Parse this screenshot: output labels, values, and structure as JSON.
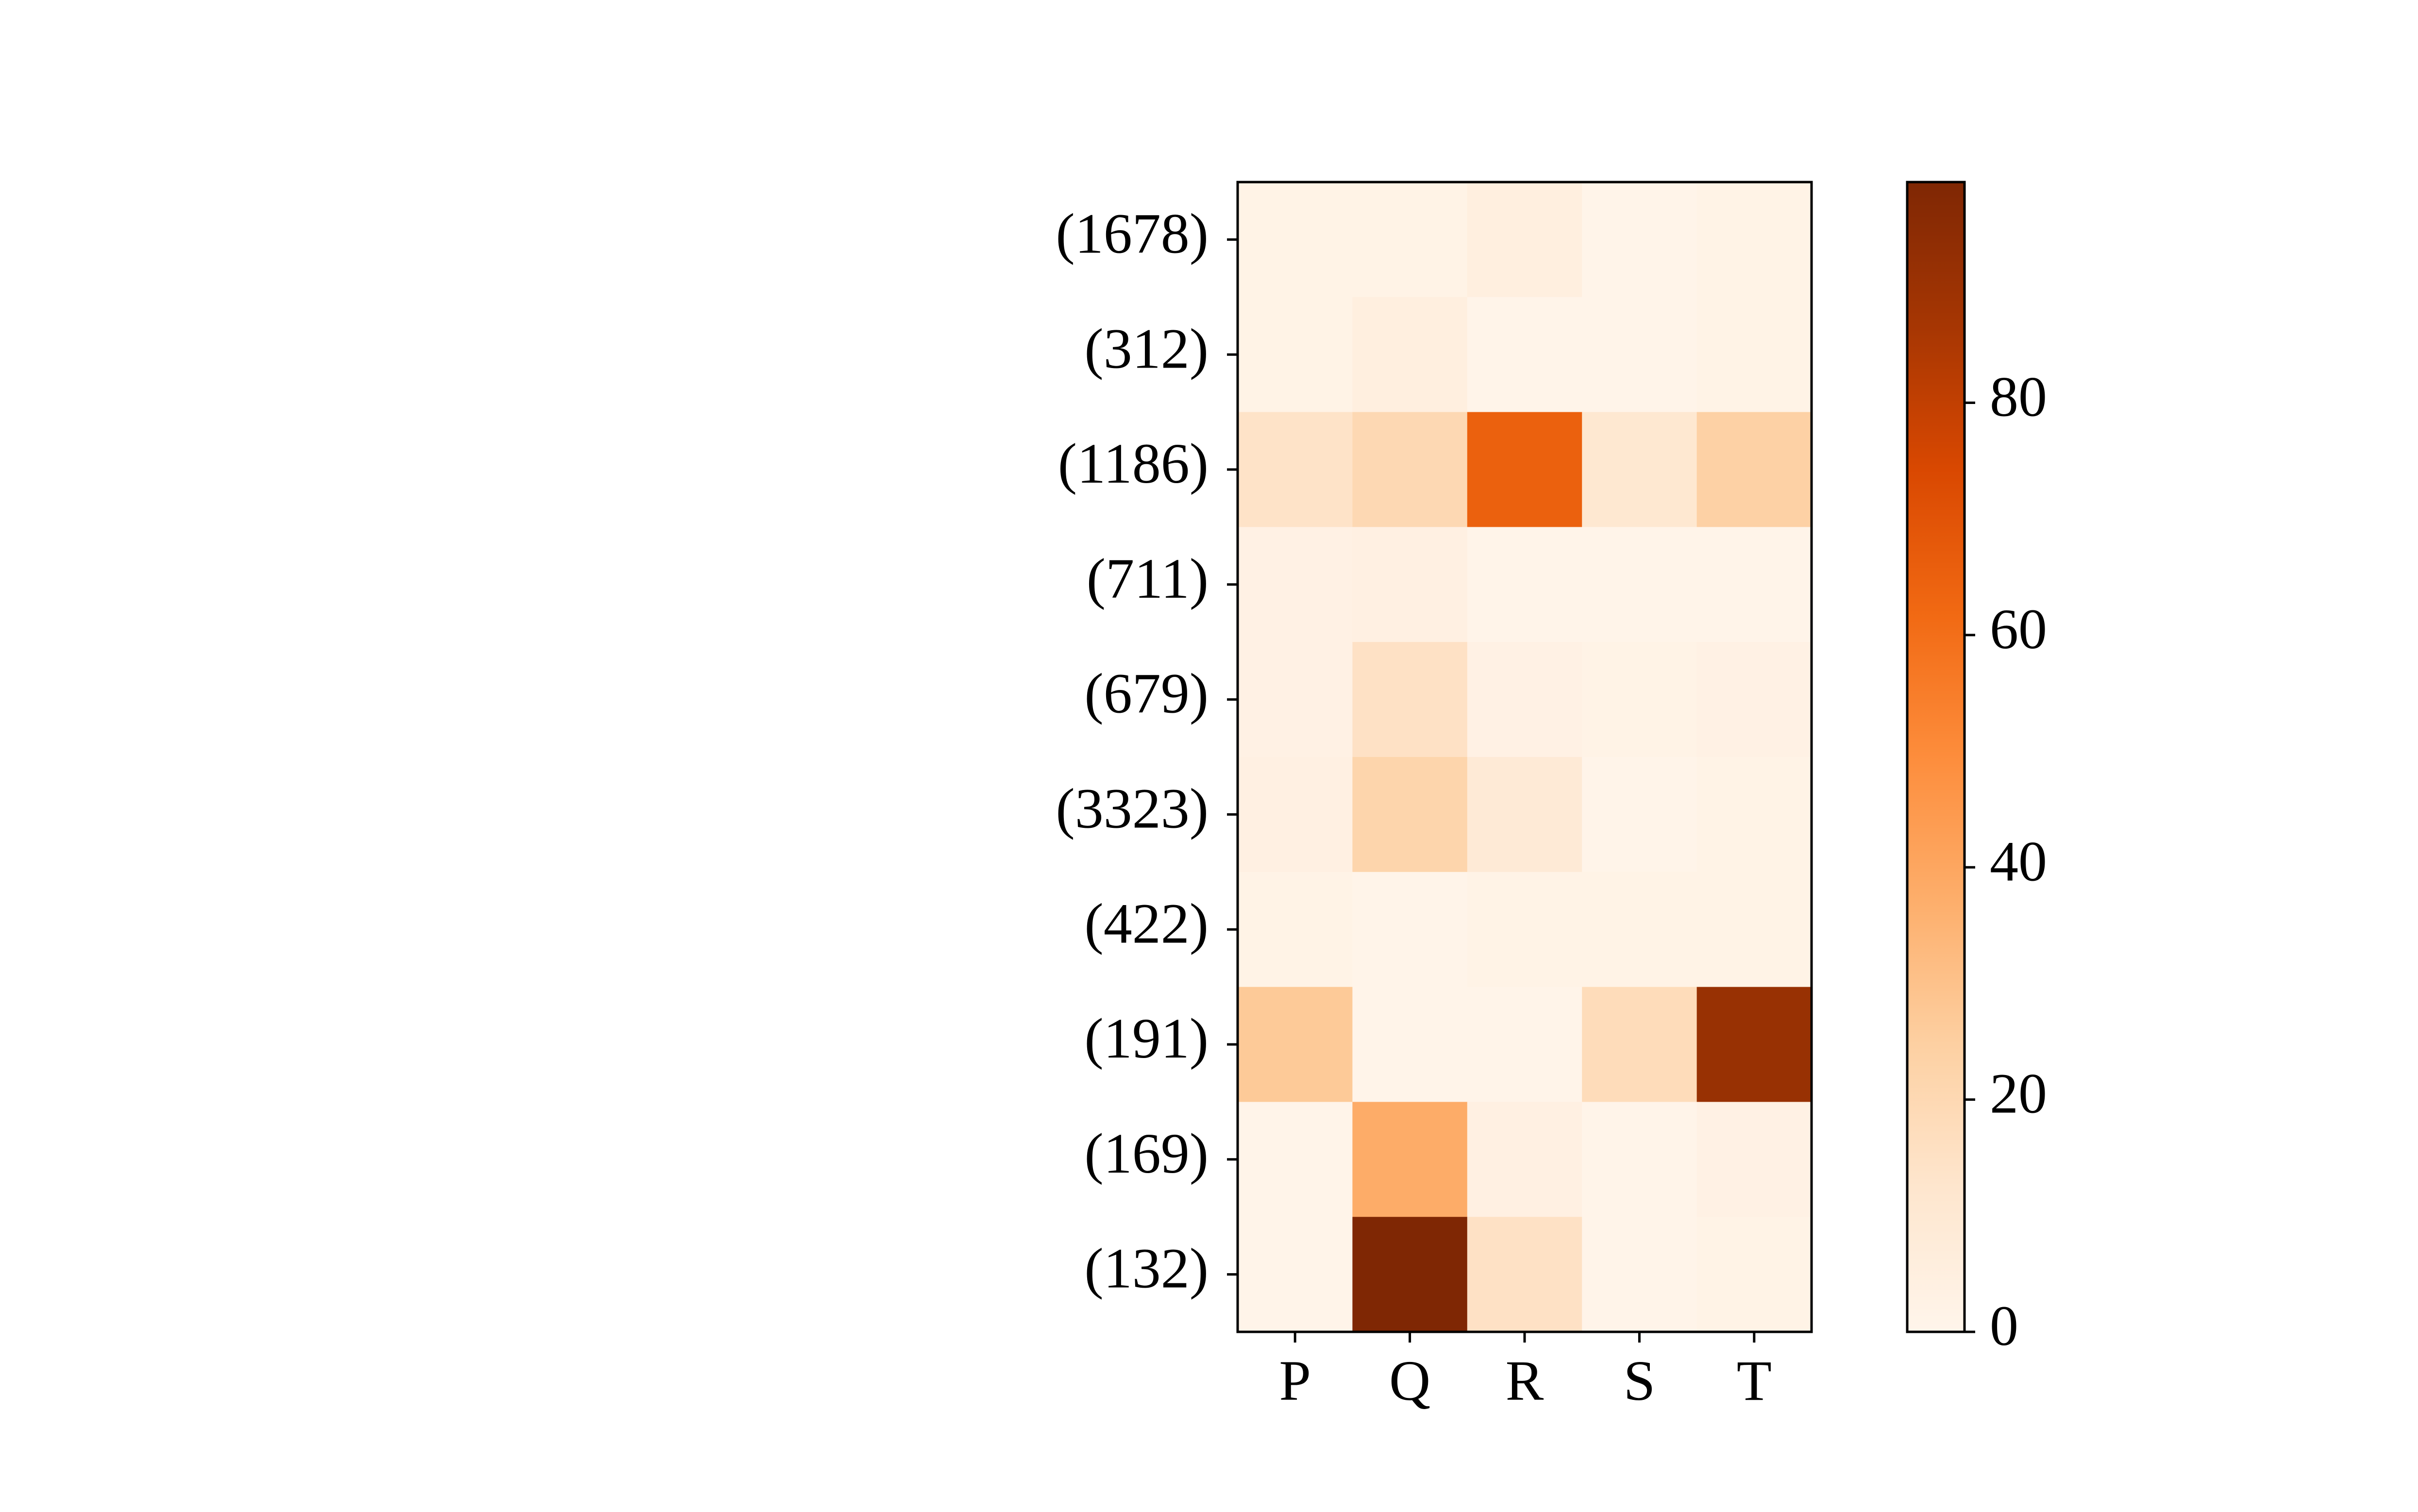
{
  "chart_data": {
    "type": "heatmap",
    "title": "",
    "xlabel": "",
    "ylabel": "",
    "x_categories": [
      "P",
      "Q",
      "R",
      "S",
      "T"
    ],
    "y_categories": [
      "(1678)",
      "(312)",
      "(1186)",
      "(711)",
      "(679)",
      "(3323)",
      "(422)",
      "(191)",
      "(169)",
      "(132)"
    ],
    "values": [
      [
        2,
        2,
        5,
        1,
        2
      ],
      [
        2,
        5,
        1,
        1,
        2
      ],
      [
        14,
        20,
        65,
        11,
        24
      ],
      [
        3,
        4,
        1,
        1,
        1
      ],
      [
        3,
        15,
        3,
        2,
        3
      ],
      [
        4,
        22,
        9,
        1,
        2
      ],
      [
        2,
        1,
        2,
        2,
        2
      ],
      [
        27,
        1,
        1,
        18,
        91
      ],
      [
        1,
        38,
        4,
        1,
        3
      ],
      [
        1,
        99,
        15,
        1,
        2
      ]
    ],
    "colorbar": {
      "min": 0,
      "max": 99,
      "ticks": [
        0,
        20,
        40,
        60,
        80
      ],
      "colormap": "Oranges",
      "low_color": "#fff5eb",
      "high_color": "#7f2704"
    }
  }
}
